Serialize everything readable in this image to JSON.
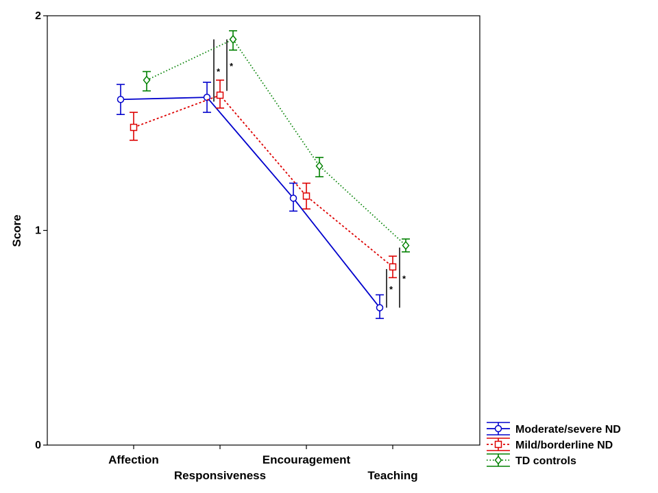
{
  "chart_data": {
    "type": "line",
    "title": "",
    "xlabel": "",
    "ylabel": "Score",
    "categories": [
      "Affection",
      "Responsiveness",
      "Encouragement",
      "Teaching"
    ],
    "ylim": [
      0,
      2
    ],
    "yticks": [
      "0",
      "1",
      "2"
    ],
    "grid": false,
    "legend_position": "bottom-right",
    "series": [
      {
        "name": "Moderate/severe ND",
        "color": "#0000cc",
        "line_style": "solid",
        "marker": "circle",
        "values": [
          1.61,
          1.62,
          1.15,
          0.64
        ],
        "error_low": [
          1.54,
          1.55,
          1.09,
          0.59
        ],
        "error_high": [
          1.68,
          1.69,
          1.22,
          0.7
        ]
      },
      {
        "name": "Mild/borderline ND",
        "color": "#dd0000",
        "line_style": "dotted",
        "marker": "square",
        "values": [
          1.48,
          1.63,
          1.16,
          0.83
        ],
        "error_low": [
          1.42,
          1.57,
          1.1,
          0.78
        ],
        "error_high": [
          1.55,
          1.7,
          1.22,
          0.88
        ]
      },
      {
        "name": "TD controls",
        "color": "#008000",
        "line_style": "dotted",
        "marker": "diamond",
        "values": [
          1.7,
          1.89,
          1.3,
          0.93
        ],
        "error_low": [
          1.65,
          1.84,
          1.25,
          0.9
        ],
        "error_high": [
          1.74,
          1.93,
          1.34,
          0.96
        ]
      }
    ],
    "significance_annotations": [
      {
        "category": "Responsiveness",
        "label": "*",
        "from": 1.6,
        "to": 1.89
      },
      {
        "category": "Responsiveness",
        "label": "*",
        "from": 1.65,
        "to": 1.89
      },
      {
        "category": "Teaching",
        "label": "*",
        "from": 0.64,
        "to": 0.82
      },
      {
        "category": "Teaching",
        "label": "*",
        "from": 0.64,
        "to": 0.92
      }
    ]
  }
}
